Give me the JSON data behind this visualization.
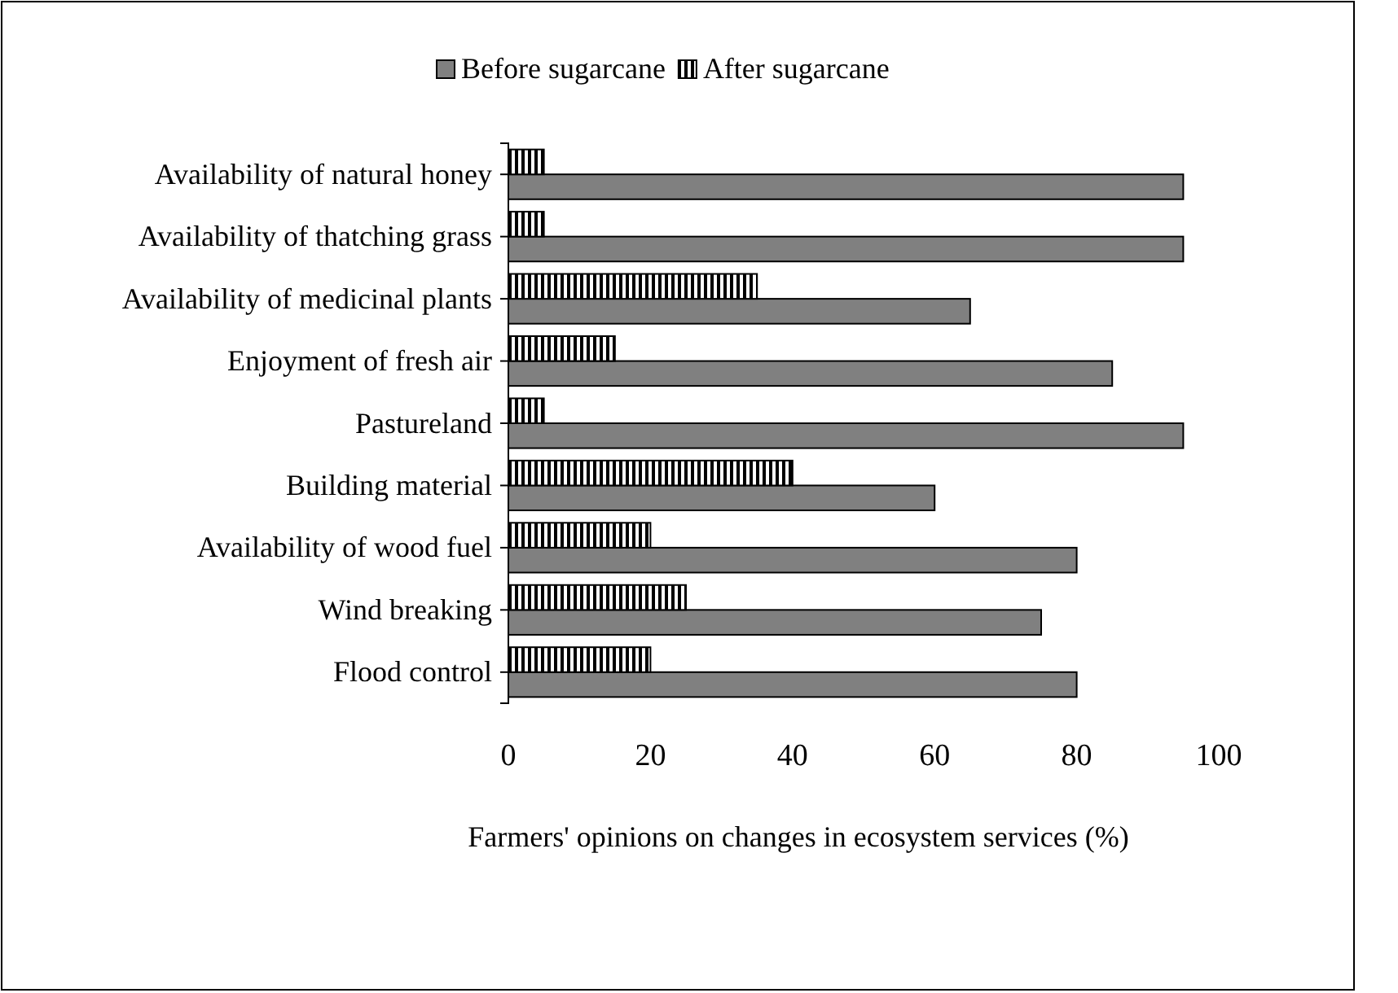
{
  "chart_data": {
    "type": "bar",
    "orientation": "horizontal",
    "xlabel": "Farmers' opinions on changes in ecosystem services (%)",
    "categories": [
      "Availability of natural honey",
      "Availability of thatching grass",
      "Availability of medicinal plants",
      "Enjoyment of fresh air",
      "Pastureland",
      "Building material",
      "Availability of wood fuel",
      "Wind breaking",
      "Flood control"
    ],
    "series": [
      {
        "name": "Before sugarcane",
        "color": "#808080",
        "values": [
          95,
          95,
          65,
          85,
          95,
          60,
          80,
          75,
          80
        ]
      },
      {
        "name": "After sugarcane",
        "color": "#000000",
        "values": [
          5,
          5,
          35,
          15,
          5,
          40,
          20,
          25,
          20
        ]
      }
    ],
    "xlim": [
      0,
      100
    ],
    "xticks": [
      0,
      20,
      40,
      60,
      80,
      100
    ],
    "legend": "top"
  }
}
